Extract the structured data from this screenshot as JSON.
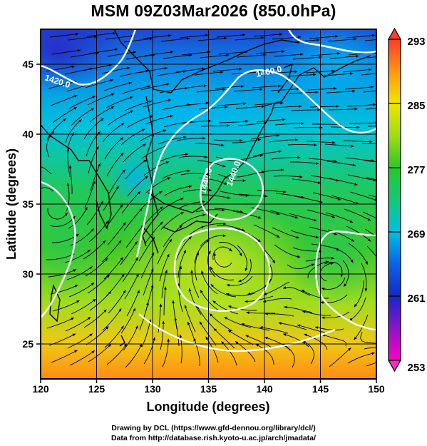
{
  "title": "MSM 09Z03Mar2026 (850.0hPa)",
  "axes": {
    "xlabel": "Longitude (degrees)",
    "ylabel": "Latitude  (degrees)",
    "xticks": [
      "120",
      "125",
      "130",
      "135",
      "140",
      "145",
      "150"
    ],
    "yticks": [
      "25",
      "30",
      "35",
      "40",
      "45"
    ],
    "xlim": [
      120,
      150
    ],
    "ylim": [
      22.5,
      47.5
    ]
  },
  "colorbar": {
    "max_label": "293",
    "min_label": "253",
    "labels": [
      "285",
      "277",
      "269",
      "261"
    ],
    "range": [
      253,
      293
    ]
  },
  "contour_labels": [
    "1420.0",
    "1460.0",
    "1440.0",
    "1440.0"
  ],
  "credits": {
    "line1": "Drawing by DCL (https://www.gfd-dennou.org/library/dcl/)",
    "line2": "Data from http://database.rish.kyoto-u.ac.jp/arch/jmadata/"
  },
  "colors": {
    "cold": "#1e3cd2",
    "cool": "#00c8e6",
    "mild": "#28c83c",
    "warm": "#c8e61e",
    "hot": "#ff8c14",
    "contour": "#ffffff"
  }
}
